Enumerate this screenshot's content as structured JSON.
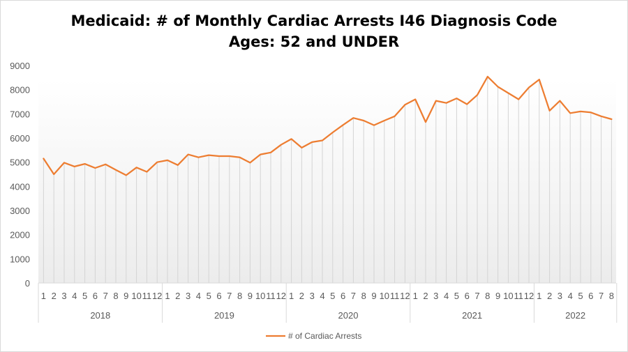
{
  "chart_data": {
    "type": "line",
    "title_line1": "Medicaid: # of Monthly Cardiac Arrests I46 Diagnosis Code",
    "title_line2": "Ages:  52 and UNDER",
    "ylim": [
      0,
      9000
    ],
    "yticks": [
      0,
      1000,
      2000,
      3000,
      4000,
      5000,
      6000,
      7000,
      8000,
      9000
    ],
    "grid": "vertical drop lines",
    "legend_position": "bottom",
    "years": [
      {
        "label": "2018",
        "months": [
          "1",
          "2",
          "3",
          "4",
          "5",
          "6",
          "7",
          "8",
          "9",
          "10",
          "11",
          "12"
        ]
      },
      {
        "label": "2019",
        "months": [
          "1",
          "2",
          "3",
          "4",
          "5",
          "6",
          "7",
          "8",
          "9",
          "10",
          "11",
          "12"
        ]
      },
      {
        "label": "2020",
        "months": [
          "1",
          "2",
          "3",
          "4",
          "5",
          "6",
          "7",
          "8",
          "9",
          "10",
          "11",
          "12"
        ]
      },
      {
        "label": "2021",
        "months": [
          "1",
          "2",
          "3",
          "4",
          "5",
          "6",
          "7",
          "8",
          "9",
          "10",
          "11",
          "12"
        ]
      },
      {
        "label": "2022",
        "months": [
          "1",
          "2",
          "3",
          "4",
          "5",
          "6",
          "7",
          "8"
        ]
      }
    ],
    "series": [
      {
        "name": "# of Cardiac Arrests",
        "color": "#ed7d31",
        "values": [
          5150,
          4500,
          4980,
          4820,
          4930,
          4760,
          4910,
          4680,
          4460,
          4780,
          4600,
          5000,
          5080,
          4880,
          5320,
          5200,
          5290,
          5250,
          5250,
          5200,
          4980,
          5320,
          5400,
          5720,
          5960,
          5600,
          5830,
          5900,
          6230,
          6540,
          6830,
          6720,
          6530,
          6720,
          6900,
          7380,
          7600,
          6660,
          7540,
          7450,
          7640,
          7400,
          7780,
          8540,
          8120,
          7860,
          7600,
          8090,
          8420,
          7130,
          7540,
          7030,
          7100,
          7060,
          6900,
          6780
        ]
      }
    ]
  }
}
